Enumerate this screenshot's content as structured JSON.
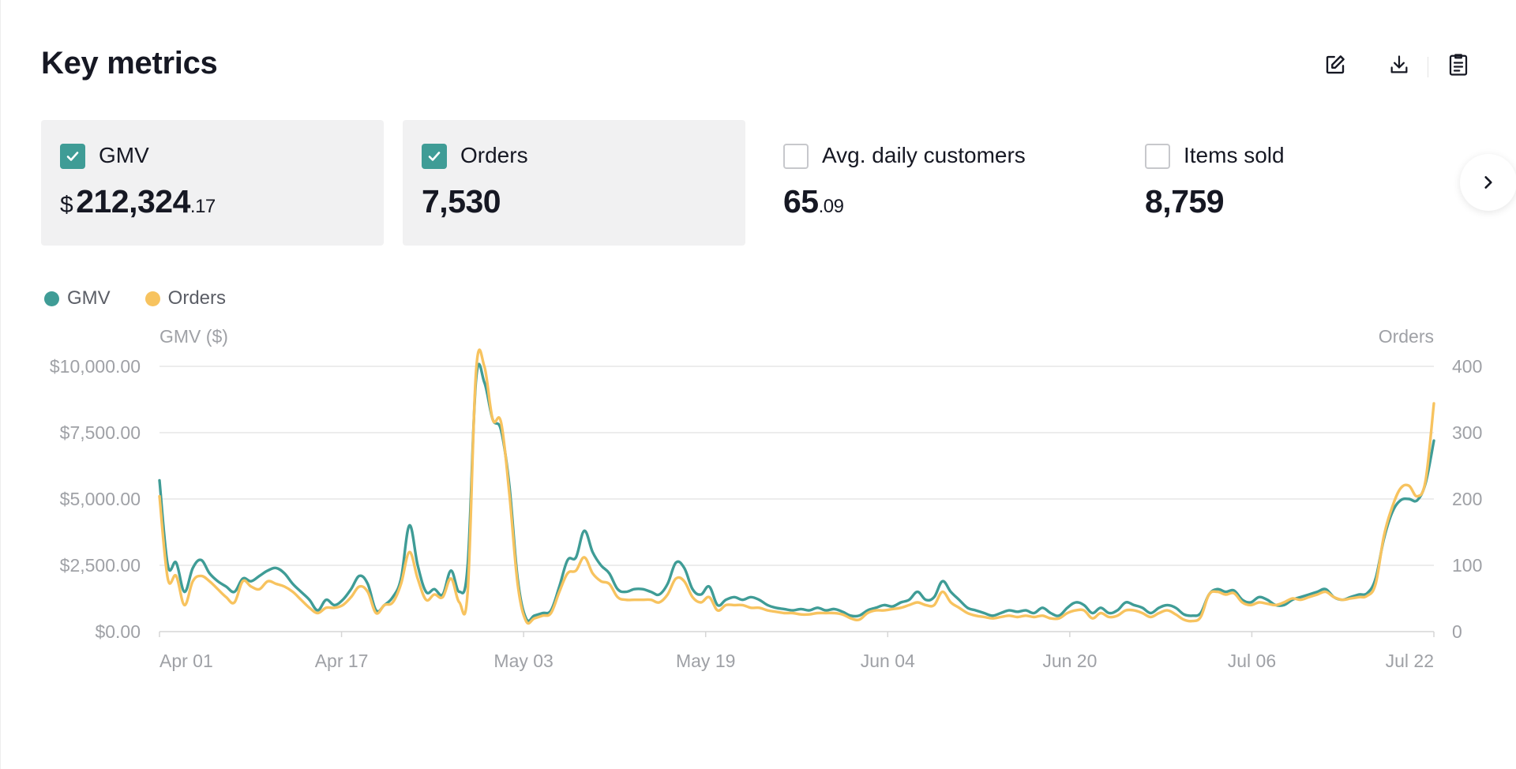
{
  "header": {
    "title": "Key metrics"
  },
  "toolbar": {
    "edit_icon": "edit-icon",
    "download_icon": "download-icon",
    "clipboard_icon": "clipboard-icon"
  },
  "metrics": [
    {
      "label": "GMV",
      "checked": true,
      "currency": "$",
      "value_main": "212,324",
      "value_dec": ".17"
    },
    {
      "label": "Orders",
      "checked": true,
      "value_main": "7,530",
      "value_dec": ""
    },
    {
      "label": "Avg. daily customers",
      "checked": false,
      "value_main": "65",
      "value_dec": ".09"
    },
    {
      "label": "Items sold",
      "checked": false,
      "value_main": "8,759",
      "value_dec": ""
    }
  ],
  "colors": {
    "gmv": "#3f9c96",
    "orders": "#f7c35f",
    "grid": "#e6e6e6",
    "axis_text": "#9fa1a6"
  },
  "chart_data": {
    "type": "line",
    "legend": [
      "GMV",
      "Orders"
    ],
    "legend_position": "top-left",
    "y_left_label": "GMV ($)",
    "y_right_label": "Orders",
    "y_left_ticks": [
      "$0.00",
      "$2,500.00",
      "$5,000.00",
      "$7,500.00",
      "$10,000.00"
    ],
    "y_right_ticks": [
      "0",
      "100",
      "200",
      "300",
      "400"
    ],
    "x_ticks": [
      "Apr 01",
      "Apr 17",
      "May 03",
      "May 19",
      "Jun 04",
      "Jun 20",
      "Jul 06",
      "Jul 22"
    ],
    "ylim_left": [
      0,
      10000
    ],
    "ylim_right": [
      0,
      400
    ],
    "grid": true,
    "series": [
      {
        "name": "GMV",
        "axis": "left",
        "values": [
          5700,
          2500,
          2600,
          1500,
          2400,
          2700,
          2200,
          1900,
          1700,
          1500,
          2000,
          1900,
          2100,
          2300,
          2400,
          2200,
          1800,
          1500,
          1200,
          800,
          1200,
          1000,
          1200,
          1600,
          2100,
          1800,
          800,
          1000,
          1300,
          2000,
          4000,
          2500,
          1500,
          1600,
          1400,
          2300,
          1500,
          2500,
          9500,
          9400,
          8000,
          7600,
          5500,
          2000,
          500,
          600,
          700,
          800,
          1700,
          2700,
          2800,
          3800,
          3000,
          2500,
          2200,
          1600,
          1500,
          1600,
          1600,
          1500,
          1400,
          1800,
          2600,
          2400,
          1600,
          1400,
          1700,
          1000,
          1200,
          1300,
          1200,
          1300,
          1200,
          1000,
          900,
          850,
          800,
          850,
          800,
          900,
          800,
          850,
          750,
          600,
          600,
          800,
          900,
          1000,
          950,
          1100,
          1200,
          1500,
          1200,
          1300,
          1900,
          1500,
          1200,
          900,
          800,
          700,
          600,
          700,
          800,
          750,
          800,
          700,
          900,
          700,
          600,
          900,
          1100,
          1000,
          700,
          900,
          700,
          800,
          1100,
          1000,
          900,
          700,
          900,
          1000,
          900,
          650,
          600,
          700,
          1400,
          1600,
          1500,
          1550,
          1200,
          1100,
          1300,
          1200,
          1000,
          1000,
          1200,
          1300,
          1400,
          1500,
          1600,
          1300,
          1200,
          1300,
          1400,
          1450,
          2000,
          3500,
          4500,
          4950,
          5000,
          4950,
          5600,
          7200
        ]
      },
      {
        "name": "Orders",
        "axis": "left",
        "values": [
          5100,
          2000,
          2100,
          1000,
          1900,
          2100,
          1900,
          1600,
          1300,
          1100,
          1900,
          1700,
          1600,
          1900,
          1800,
          1700,
          1500,
          1200,
          900,
          700,
          900,
          900,
          1000,
          1300,
          1700,
          1500,
          700,
          1000,
          1100,
          1800,
          3000,
          2000,
          1200,
          1400,
          1300,
          2000,
          1100,
          1500,
          9800,
          10000,
          8000,
          7900,
          5200,
          1800,
          400,
          500,
          600,
          700,
          1500,
          2200,
          2300,
          2800,
          2200,
          1900,
          1800,
          1300,
          1200,
          1200,
          1200,
          1200,
          1100,
          1400,
          2000,
          1900,
          1300,
          1100,
          1300,
          800,
          1000,
          1000,
          1000,
          900,
          900,
          800,
          750,
          700,
          700,
          650,
          650,
          700,
          700,
          700,
          650,
          500,
          450,
          700,
          800,
          800,
          850,
          900,
          1000,
          1100,
          1000,
          1000,
          1500,
          1100,
          900,
          700,
          600,
          550,
          500,
          550,
          600,
          550,
          600,
          550,
          600,
          500,
          500,
          700,
          800,
          800,
          500,
          700,
          550,
          600,
          800,
          800,
          700,
          550,
          700,
          800,
          650,
          450,
          400,
          550,
          1400,
          1500,
          1400,
          1450,
          1100,
          1000,
          1100,
          1050,
          1000,
          1100,
          1250,
          1200,
          1300,
          1400,
          1500,
          1300,
          1200,
          1250,
          1300,
          1350,
          1800,
          3600,
          4700,
          5400,
          5500,
          5100,
          5700,
          8600
        ]
      }
    ]
  }
}
